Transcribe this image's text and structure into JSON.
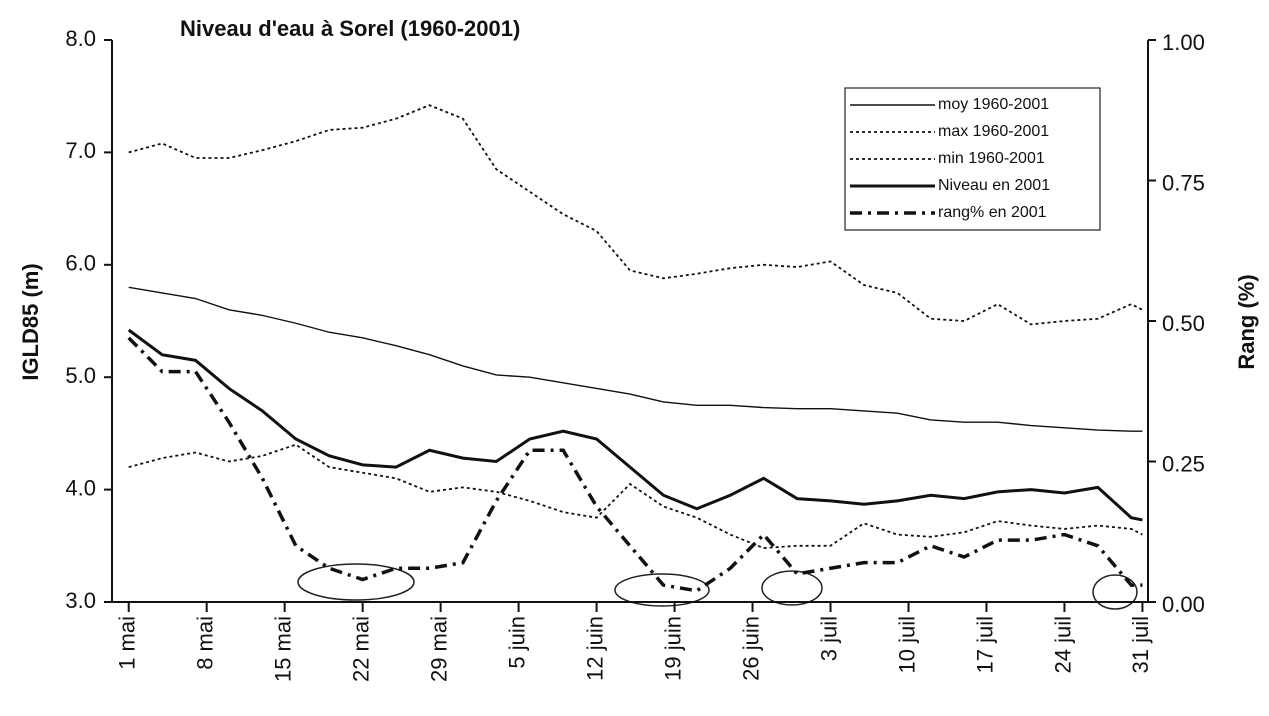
{
  "chart_data": {
    "type": "line",
    "title": "Niveau d'eau à Sorel (1960-2001)",
    "ylabel": "IGLD85 (m)",
    "y2label": "Rang (%)",
    "x": [
      0,
      3,
      6,
      9,
      12,
      15,
      18,
      21,
      24,
      27,
      30,
      33,
      36,
      39,
      42,
      45,
      48,
      51,
      54,
      57,
      60,
      63,
      66,
      69,
      72,
      75,
      78,
      81,
      84,
      87,
      90,
      91
    ],
    "xlim": [
      -1.5,
      91.5
    ],
    "xticks": [
      {
        "value": 0,
        "label": "1 mai"
      },
      {
        "value": 7,
        "label": "8 mai"
      },
      {
        "value": 14,
        "label": "15 mai"
      },
      {
        "value": 21,
        "label": "22 mai"
      },
      {
        "value": 28,
        "label": "29 mai"
      },
      {
        "value": 35,
        "label": "5 juin"
      },
      {
        "value": 42,
        "label": "12 juin"
      },
      {
        "value": 49,
        "label": "19 juin"
      },
      {
        "value": 56,
        "label": "26 juin"
      },
      {
        "value": 63,
        "label": "3 juil"
      },
      {
        "value": 70,
        "label": "10 juil"
      },
      {
        "value": 77,
        "label": "17 juil"
      },
      {
        "value": 84,
        "label": "24 juil"
      },
      {
        "value": 91,
        "label": "31 juil"
      }
    ],
    "ylim": [
      3,
      8
    ],
    "yticks": [
      {
        "value": 3,
        "label": "3.0"
      },
      {
        "value": 4,
        "label": "4.0"
      },
      {
        "value": 5,
        "label": "5.0"
      },
      {
        "value": 6,
        "label": "6.0"
      },
      {
        "value": 7,
        "label": "7.0"
      },
      {
        "value": 8,
        "label": "8.0"
      }
    ],
    "y2lim": [
      0,
      1
    ],
    "y2ticks": [
      {
        "value": 0,
        "label": "0.00"
      },
      {
        "value": 0.25,
        "label": "0.25"
      },
      {
        "value": 0.5,
        "label": "0.50"
      },
      {
        "value": 0.75,
        "label": "0.75"
      },
      {
        "value": 1,
        "label": "1.00"
      }
    ],
    "series": [
      {
        "name": "moy 1960-2001",
        "color": "#111111",
        "style": "solid",
        "values": [
          5.8,
          5.75,
          5.7,
          5.6,
          5.55,
          5.48,
          5.4,
          5.35,
          5.28,
          5.2,
          5.1,
          5.02,
          5.0,
          4.95,
          4.9,
          4.85,
          4.78,
          4.75,
          4.75,
          4.73,
          4.72,
          4.72,
          4.7,
          4.68,
          4.62,
          4.6,
          4.6,
          4.57,
          4.55,
          4.53,
          4.52,
          4.52
        ]
      },
      {
        "name": "max 1960-2001",
        "color": "#111111",
        "style": "dotted",
        "values": [
          7.0,
          7.08,
          6.95,
          6.95,
          7.02,
          7.1,
          7.2,
          7.22,
          7.3,
          7.42,
          7.3,
          6.85,
          6.65,
          6.45,
          6.3,
          5.95,
          5.88,
          5.92,
          5.97,
          6.0,
          5.98,
          6.03,
          5.82,
          5.75,
          5.52,
          5.5,
          5.65,
          5.47,
          5.5,
          5.52,
          5.65,
          5.6
        ]
      },
      {
        "name": "min 1960-2001",
        "color": "#111111",
        "style": "dotted",
        "values": [
          4.2,
          4.28,
          4.33,
          4.25,
          4.3,
          4.4,
          4.2,
          4.15,
          4.1,
          3.98,
          4.02,
          3.98,
          3.9,
          3.8,
          3.75,
          4.05,
          3.85,
          3.75,
          3.6,
          3.48,
          3.5,
          3.5,
          3.7,
          3.6,
          3.58,
          3.62,
          3.72,
          3.68,
          3.65,
          3.68,
          3.65,
          3.6
        ]
      },
      {
        "name": "Niveau en 2001",
        "color": "#111111",
        "style": "bold",
        "values": [
          5.42,
          5.2,
          5.15,
          4.9,
          4.7,
          4.45,
          4.3,
          4.22,
          4.2,
          4.35,
          4.28,
          4.25,
          4.45,
          4.52,
          4.45,
          4.2,
          3.95,
          3.83,
          3.95,
          4.1,
          3.92,
          3.9,
          3.87,
          3.9,
          3.95,
          3.92,
          3.98,
          4.0,
          3.97,
          4.02,
          3.75,
          3.73
        ]
      },
      {
        "name": "rang%  en 2001",
        "color": "#111111",
        "style": "dashed",
        "axis": "y2",
        "values": [
          0.47,
          0.41,
          0.41,
          0.32,
          0.22,
          0.1,
          0.06,
          0.04,
          0.06,
          0.06,
          0.07,
          0.18,
          0.27,
          0.27,
          0.17,
          0.1,
          0.03,
          0.02,
          0.06,
          0.12,
          0.05,
          0.06,
          0.07,
          0.07,
          0.1,
          0.08,
          0.11,
          0.11,
          0.12,
          0.1,
          0.03,
          0.03
        ]
      }
    ]
  }
}
